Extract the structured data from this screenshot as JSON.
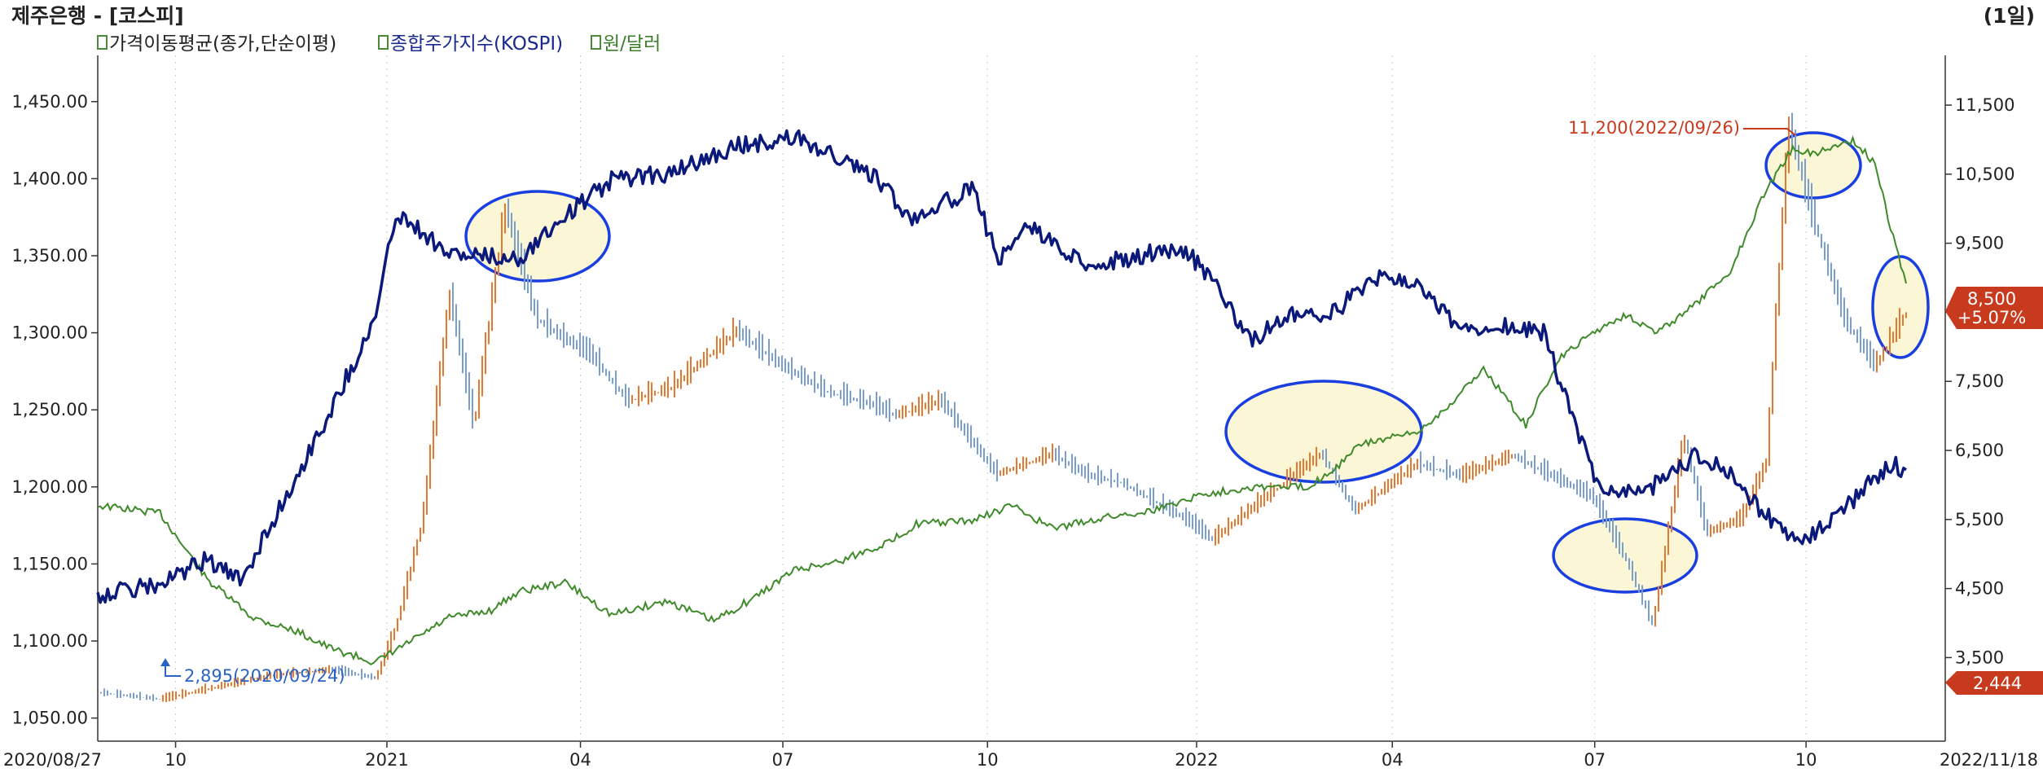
{
  "header": {
    "title": "제주은행 - [코스피]",
    "period": "(1일)"
  },
  "legend": [
    {
      "label": "가격이동평균(종가,단순이평)",
      "color": "#222222"
    },
    {
      "label": "종합주가지수(KOSPI)",
      "color": "#1a2a8c"
    },
    {
      "label": "원/달러",
      "color": "#3a7d2a"
    }
  ],
  "colors": {
    "kospi": "#0b1a7a",
    "usdkrw": "#3f8a2a",
    "stock_up": "#e8782e",
    "stock_down": "#7a9fcf",
    "highlight_fill": "#fbf6d6",
    "highlight_stroke": "#1a3fe0",
    "badge_red": "#c83a1e",
    "low_label": "#2a62c8",
    "high_label": "#c83a1e"
  },
  "x_labels": [
    "2020/08/27",
    "10",
    "2021",
    "04",
    "07",
    "10",
    "2022",
    "04",
    "07",
    "10",
    "2022/11/18"
  ],
  "annotations": {
    "high": "11,200(2022/09/26)",
    "low": "2,895(2020/09/24)"
  },
  "badges": {
    "price": "8,500",
    "change": "+5.07%",
    "ma": "2,444"
  },
  "chart_data": {
    "type": "line",
    "x_range": [
      "2020/08/27",
      "2022/11/18"
    ],
    "left_axis": {
      "ticks": [
        "1,450.00",
        "1,400.00",
        "1,350.00",
        "1,300.00",
        "1,250.00",
        "1,200.00",
        "1,150.00",
        "1,100.00",
        "1,050.00"
      ],
      "range": [
        1035,
        1480
      ]
    },
    "right_axis": {
      "ticks": [
        "11,500",
        "10,500",
        "9,500",
        "8,500",
        "7,500",
        "6,500",
        "5,500",
        "4,500",
        "3,500"
      ],
      "range": [
        2290,
        12220
      ]
    },
    "series": [
      {
        "name": "종합주가지수(KOSPI)",
        "axis": "right",
        "x": [
          "2020/08/27",
          "2020/09/24",
          "2020/10/15",
          "2020/10/30",
          "2020/11/20",
          "2020/12/10",
          "2020/12/30",
          "2021/01/08",
          "2021/01/20",
          "2021/02/01",
          "2021/02/16",
          "2021/03/04",
          "2021/03/25",
          "2021/04/15",
          "2021/05/12",
          "2021/06/10",
          "2021/07/06",
          "2021/07/20",
          "2021/08/12",
          "2021/08/27",
          "2021/09/24",
          "2021/10/06",
          "2021/10/20",
          "2021/11/12",
          "2021/11/30",
          "2021/12/27",
          "2022/01/12",
          "2022/01/27",
          "2022/02/15",
          "2022/03/03",
          "2022/03/24",
          "2022/04/12",
          "2022/05/02",
          "2022/05/12",
          "2022/06/08",
          "2022/06/23",
          "2022/07/04",
          "2022/07/25",
          "2022/08/16",
          "2022/08/30",
          "2022/09/14",
          "2022/09/30",
          "2022/10/07",
          "2022/10/21",
          "2022/11/01",
          "2022/11/11",
          "2022/11/18"
        ],
        "y": [
          4410,
          4550,
          4920,
          4600,
          5850,
          7100,
          8430,
          9940,
          9670,
          9340,
          9300,
          9280,
          9900,
          10410,
          10520,
          10900,
          11030,
          10840,
          10440,
          9870,
          10280,
          9280,
          9750,
          9200,
          9260,
          9450,
          8920,
          8080,
          8480,
          8440,
          8980,
          8960,
          8200,
          8330,
          8200,
          6800,
          5880,
          5940,
          6430,
          6210,
          5620,
          5160,
          5280,
          5630,
          6010,
          6300,
          6220
        ]
      },
      {
        "name": "원/달러",
        "axis": "left",
        "x": [
          "2020/08/27",
          "2020/09/24",
          "2020/10/15",
          "2020/11/05",
          "2020/11/25",
          "2020/12/10",
          "2020/12/30",
          "2021/01/15",
          "2021/02/01",
          "2021/02/20",
          "2021/03/04",
          "2021/03/25",
          "2021/04/15",
          "2021/05/10",
          "2021/05/31",
          "2021/06/18",
          "2021/07/06",
          "2021/07/27",
          "2021/08/19",
          "2021/08/30",
          "2021/09/24",
          "2021/10/12",
          "2021/10/30",
          "2021/11/22",
          "2021/12/15",
          "2022/01/05",
          "2022/01/28",
          "2022/02/22",
          "2022/03/07",
          "2022/03/18",
          "2022/04/12",
          "2022/04/28",
          "2022/05/12",
          "2022/05/31",
          "2022/06/15",
          "2022/06/30",
          "2022/07/15",
          "2022/07/29",
          "2022/08/15",
          "2022/08/31",
          "2022/09/15",
          "2022/09/28",
          "2022/10/07",
          "2022/10/25",
          "2022/11/04",
          "2022/11/11",
          "2022/11/18"
        ],
        "y": [
          1188,
          1183,
          1140,
          1115,
          1106,
          1095,
          1086,
          1100,
          1115,
          1120,
          1132,
          1138,
          1117,
          1126,
          1113,
          1128,
          1146,
          1152,
          1165,
          1176,
          1178,
          1188,
          1173,
          1180,
          1185,
          1195,
          1200,
          1200,
          1213,
          1228,
          1235,
          1255,
          1277,
          1240,
          1283,
          1300,
          1312,
          1300,
          1318,
          1340,
          1390,
          1420,
          1416,
          1425,
          1410,
          1368,
          1332
        ]
      }
    ],
    "stock_price_bars": {
      "axis": "right",
      "x": [
        "2020/08/27",
        "2020/09/24",
        "2020/10/15",
        "2020/11/15",
        "2020/12/10",
        "2020/12/30",
        "2021/01/08",
        "2021/01/20",
        "2021/02/01",
        "2021/02/12",
        "2021/02/26",
        "2021/03/12",
        "2021/03/24",
        "2021/04/05",
        "2021/04/22",
        "2021/05/12",
        "2021/06/10",
        "2021/06/30",
        "2021/07/20",
        "2021/08/10",
        "2021/08/20",
        "2021/09/10",
        "2021/10/05",
        "2021/10/30",
        "2021/11/15",
        "2021/11/30",
        "2021/12/30",
        "2022/01/10",
        "2022/02/10",
        "2022/02/28",
        "2022/03/15",
        "2022/04/12",
        "2022/05/02",
        "2022/05/25",
        "2022/06/10",
        "2022/06/30",
        "2022/07/15",
        "2022/07/27",
        "2022/08/10",
        "2022/08/20",
        "2022/09/05",
        "2022/09/16",
        "2022/09/26",
        "2022/10/06",
        "2022/10/21",
        "2022/11/04",
        "2022/11/18"
      ],
      "y": [
        2990,
        2895,
        3040,
        3250,
        3320,
        3200,
        3950,
        5500,
        8780,
        6840,
        10000,
        8400,
        8120,
        7900,
        7210,
        7400,
        8220,
        7730,
        7350,
        7160,
        7000,
        7210,
        6150,
        6440,
        6130,
        6030,
        5480,
        5200,
        6000,
        6450,
        5620,
        6300,
        6120,
        6420,
        6150,
        5820,
        4910,
        3960,
        6710,
        5300,
        5510,
        6320,
        11200,
        9960,
        8400,
        7710,
        8500
      ]
    },
    "moving_average": {
      "name": "가격이동평균(종가,단순이평)",
      "last": "2,444"
    },
    "highlights": [
      "2021/03",
      "2022/03",
      "2022/07",
      "2022/09",
      "2022/11"
    ]
  }
}
